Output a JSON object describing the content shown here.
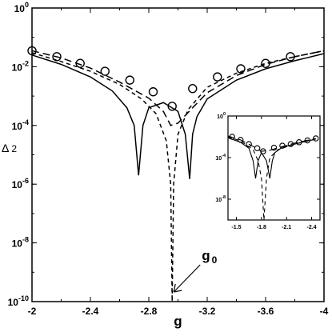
{
  "chart_data": [
    {
      "type": "line",
      "title": "",
      "xlabel": "g",
      "ylabel": "Δ 2",
      "ylabel_main": "Δ",
      "ylabel_sub": "2",
      "log_y": true,
      "xlim": [
        -2.0,
        -4.0
      ],
      "ylim": [
        1e-10,
        1
      ],
      "x_ticks": [
        -2,
        -2.4,
        -2.8,
        -3.2,
        -3.6,
        -4
      ],
      "x_tick_labels": [
        "-2",
        "-2.4",
        "-2.8",
        "-3.2",
        "-3.6",
        "-4"
      ],
      "y_ticks": [
        1e-10,
        1e-08,
        1e-06,
        0.0001,
        0.01,
        1
      ],
      "y_tick_labels": [
        {
          "base": "10",
          "exp": "-10"
        },
        {
          "base": "10",
          "exp": "-8"
        },
        {
          "base": "10",
          "exp": "-6"
        },
        {
          "base": "10",
          "exp": "-4"
        },
        {
          "base": "10",
          "exp": "-2"
        },
        {
          "base": "10",
          "exp": "0"
        }
      ],
      "grid": false,
      "annotation": {
        "text_main": "g",
        "text_sub": "0",
        "points_to_x": -2.96,
        "points_to_y": 1e-10
      },
      "series": [
        {
          "style": "solid",
          "x": [
            -2.0,
            -2.2,
            -2.4,
            -2.55,
            -2.65,
            -2.7,
            -2.73,
            -2.76,
            -2.8,
            -2.9,
            -3.0,
            -3.05,
            -3.08,
            -3.1,
            -3.13,
            -3.2,
            -3.4,
            -3.6,
            -3.8,
            -4.0
          ],
          "y": [
            0.025,
            0.012,
            0.0045,
            0.0015,
            0.0004,
            0.0001,
            2e-06,
            0.0001,
            0.0004,
            0.0006,
            0.0003,
            5e-05,
            1.5e-06,
            5e-05,
            0.0002,
            0.0008,
            0.0035,
            0.0085,
            0.016,
            0.028
          ]
        },
        {
          "style": "dashed",
          "x": [
            -2.0,
            -2.2,
            -2.4,
            -2.6,
            -2.75,
            -2.85,
            -2.92,
            -2.95,
            -2.96,
            -2.97,
            -3.0,
            -3.07,
            -3.2,
            -3.4,
            -3.6,
            -3.8,
            -4.0
          ],
          "y": [
            0.03,
            0.015,
            0.007,
            0.0025,
            0.0008,
            0.00025,
            3e-05,
            1e-06,
            1e-10,
            1e-06,
            5e-05,
            0.00035,
            0.002,
            0.006,
            0.013,
            0.022,
            0.035
          ]
        },
        {
          "style": "long-dashed",
          "x": [
            -2.0,
            -2.2,
            -2.4,
            -2.6,
            -2.8,
            -2.9,
            -2.95,
            -3.0,
            -3.1,
            -3.2,
            -3.4,
            -3.6,
            -3.8,
            -4.0
          ],
          "y": [
            0.035,
            0.02,
            0.009,
            0.003,
            0.00085,
            0.0003,
            0.0001,
            0.00012,
            0.0004,
            0.0013,
            0.005,
            0.012,
            0.022,
            0.035
          ]
        },
        {
          "style": "markers-circle",
          "x": [
            -2.0,
            -2.17,
            -2.33,
            -2.5,
            -2.67,
            -2.83,
            -2.96,
            -3.1,
            -3.27,
            -3.43,
            -3.6,
            -3.77
          ],
          "y": [
            0.035,
            0.022,
            0.013,
            0.007,
            0.0035,
            0.0014,
            0.00045,
            0.0018,
            0.0045,
            0.0085,
            0.013,
            0.022
          ]
        }
      ]
    },
    {
      "type": "line",
      "title": "",
      "inset": true,
      "xlabel": "",
      "ylabel": "",
      "log_y": true,
      "xlim": [
        -1.4,
        -2.5
      ],
      "ylim": [
        1e-10,
        1
      ],
      "x_ticks": [
        -1.5,
        -1.8,
        -2.1,
        -2.4
      ],
      "x_tick_labels": [
        "-1.5",
        "-1.8",
        "-2.1",
        "-2.4"
      ],
      "y_ticks": [
        1e-08,
        0.0001,
        1
      ],
      "y_tick_labels": [
        {
          "base": "10",
          "exp": "-8"
        },
        {
          "base": "10",
          "exp": "-4"
        },
        {
          "base": "10",
          "exp": "0"
        }
      ],
      "grid": false,
      "series": [
        {
          "style": "solid",
          "x": [
            -1.4,
            -1.55,
            -1.65,
            -1.7,
            -1.73,
            -1.76,
            -1.8,
            -1.86,
            -1.9,
            -1.93,
            -1.96,
            -2.05,
            -2.2,
            -2.35,
            -2.45
          ],
          "y": [
            0.008,
            0.003,
            0.0008,
            5e-05,
            1e-06,
            5e-05,
            0.0003,
            5e-05,
            1e-06,
            5e-05,
            0.0003,
            0.001,
            0.002,
            0.004,
            0.006
          ]
        },
        {
          "style": "dashed",
          "x": [
            -1.4,
            -1.55,
            -1.7,
            -1.76,
            -1.8,
            -1.83,
            -1.86,
            -1.9,
            -2.0,
            -2.2,
            -2.45
          ],
          "y": [
            0.01,
            0.004,
            0.0006,
            5e-05,
            1e-06,
            1e-10,
            1e-06,
            0.0001,
            0.0006,
            0.002,
            0.006
          ]
        },
        {
          "style": "long-dashed",
          "x": [
            -1.4,
            -1.55,
            -1.7,
            -1.8,
            -1.9,
            -2.0,
            -2.2,
            -2.45
          ],
          "y": [
            0.012,
            0.005,
            0.0012,
            0.0004,
            0.0005,
            0.0009,
            0.0025,
            0.007
          ]
        },
        {
          "style": "markers-circle",
          "x": [
            -1.45,
            -1.55,
            -1.65,
            -1.75,
            -1.82,
            -1.95,
            -2.05,
            -2.15,
            -2.25,
            -2.35,
            -2.45
          ],
          "y": [
            0.01,
            0.005,
            0.002,
            0.0008,
            0.0004,
            0.0009,
            0.0014,
            0.002,
            0.003,
            0.0045,
            0.007
          ]
        }
      ]
    }
  ]
}
